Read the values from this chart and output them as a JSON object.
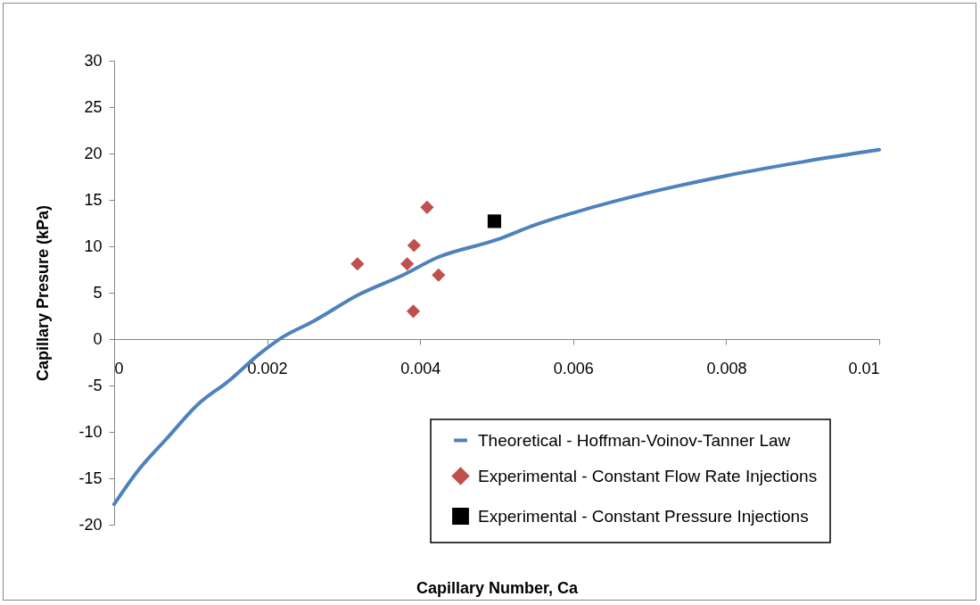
{
  "chart_data": {
    "type": "scatter",
    "xlabel": "Capillary Number, Ca",
    "ylabel": "Capillary Presure (kPa)",
    "xlim": [
      0,
      0.01
    ],
    "ylim": [
      -20,
      30
    ],
    "xticks": [
      0,
      0.002,
      0.004,
      0.006,
      0.008,
      0.01
    ],
    "yticks": [
      -20,
      -15,
      -10,
      -5,
      0,
      5,
      10,
      15,
      20,
      25,
      30
    ],
    "grid": false,
    "legend": "bottom right",
    "series": [
      {
        "name": "Theoretical - Hoffman-Voinov-Tanner Law",
        "type": "line",
        "marker": "none",
        "line_style": "solid",
        "color": "#4f81bd",
        "x": [
          0,
          0.0003,
          0.0007,
          0.0011,
          0.0015,
          0.0019,
          0.0022,
          0.0026,
          0.0032,
          0.0038,
          0.0042,
          0.005,
          0.0055,
          0.006,
          0.007,
          0.008,
          0.009,
          0.01
        ],
        "values": [
          -17.8,
          -14.3,
          -10.6,
          -7.0,
          -4.5,
          -1.6,
          0.2,
          1.9,
          4.8,
          7.0,
          8.7,
          10.7,
          12.3,
          13.6,
          15.8,
          17.6,
          19.1,
          20.4
        ]
      },
      {
        "name": "Experimental - Constant Flow Rate Injections",
        "marker": "diamond",
        "color": "#c0504d",
        "x": [
          0.00318,
          0.00383,
          0.00392,
          0.00409,
          0.00424,
          0.00391
        ],
        "values": [
          8.1,
          8.1,
          10.1,
          14.2,
          6.9,
          3.0
        ]
      },
      {
        "name": "Experimental - Constant Pressure Injections",
        "marker": "square",
        "color": "#000000",
        "x": [
          0.00497
        ],
        "values": [
          12.7
        ]
      }
    ]
  }
}
